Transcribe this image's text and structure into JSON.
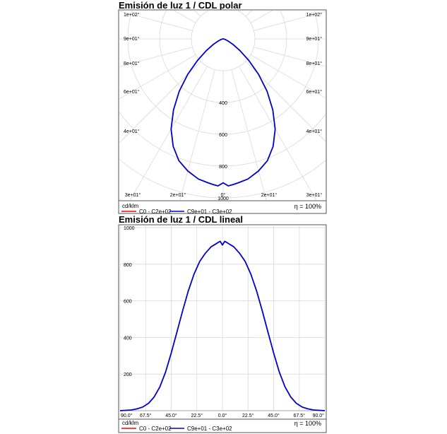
{
  "chart_data": [
    {
      "type": "polar",
      "title": "Emisión de luz 1 / CDL polar",
      "unit_label": "cd/klm",
      "efficiency_label": "η = 100%",
      "radial_ticks": [
        "400",
        "600",
        "800",
        "1000"
      ],
      "radial_tick_values": [
        400,
        600,
        800,
        1000
      ],
      "r_max": 1200,
      "angle_labels_left": [
        "1e+02°",
        "9e+01°",
        "8e+01°",
        "6e+01°",
        "4e+01°"
      ],
      "angle_labels_right": [
        "1e+02°",
        "9e+01°",
        "8e+01°",
        "6e+01°",
        "4e+01°"
      ],
      "angle_labels_bottom": [
        "3e+01°",
        "2e+01°",
        "0°",
        "2e+01°",
        "3e+01°"
      ],
      "legend": [
        {
          "name": "C0 - C2e+02",
          "color": "#ff0000"
        },
        {
          "name": "C9e+01 - C3e+02",
          "color": "#0000cc"
        }
      ],
      "series": [
        {
          "name": "C9e+01 - C3e+02",
          "color": "#0000cc",
          "angles": [
            0,
            2,
            4,
            6,
            10,
            15,
            20,
            25,
            30,
            35,
            40,
            45,
            50,
            55,
            60,
            65,
            70,
            75,
            80,
            85,
            90
          ],
          "values": [
            905,
            925,
            918,
            910,
            895,
            860,
            815,
            745,
            655,
            545,
            430,
            315,
            210,
            130,
            75,
            40,
            20,
            10,
            4,
            2,
            0
          ]
        }
      ]
    },
    {
      "type": "line",
      "title": "Emisión de luz 1 / CDL lineal",
      "unit_label": "cd/klm",
      "efficiency_label": "η = 100%",
      "x_tick_labels": [
        "90.0°",
        "67.5°",
        "45.0°",
        "22.5°",
        "0.0°",
        "22.5°",
        "45.0°",
        "67.5°",
        "90.0°"
      ],
      "x_tick_values": [
        -90,
        -67.5,
        -45,
        -22.5,
        0,
        22.5,
        45,
        67.5,
        90
      ],
      "y_ticks": [
        200,
        400,
        600,
        800,
        1000
      ],
      "xlim": [
        -90,
        90
      ],
      "ylim": [
        0,
        1000
      ],
      "grid": true,
      "legend": [
        {
          "name": "C0 - C2e+02",
          "color": "#ff0000"
        },
        {
          "name": "C9e+01 - C3e+02",
          "color": "#0000cc"
        }
      ],
      "series": [
        {
          "name": "C9e+01 - C3e+02",
          "color": "#0000cc",
          "x": [
            -90,
            -85,
            -80,
            -75,
            -70,
            -65,
            -60,
            -55,
            -50,
            -45,
            -40,
            -35,
            -30,
            -25,
            -20,
            -15,
            -10,
            -6,
            -4,
            -2,
            0,
            2,
            4,
            6,
            10,
            15,
            20,
            25,
            30,
            35,
            40,
            45,
            50,
            55,
            60,
            65,
            70,
            75,
            80,
            85,
            90
          ],
          "y": [
            0,
            2,
            4,
            10,
            20,
            40,
            75,
            130,
            210,
            315,
            430,
            545,
            655,
            745,
            815,
            860,
            895,
            910,
            918,
            925,
            905,
            925,
            918,
            910,
            895,
            860,
            815,
            745,
            655,
            545,
            430,
            315,
            210,
            130,
            75,
            40,
            20,
            10,
            4,
            2,
            0
          ]
        }
      ]
    }
  ]
}
